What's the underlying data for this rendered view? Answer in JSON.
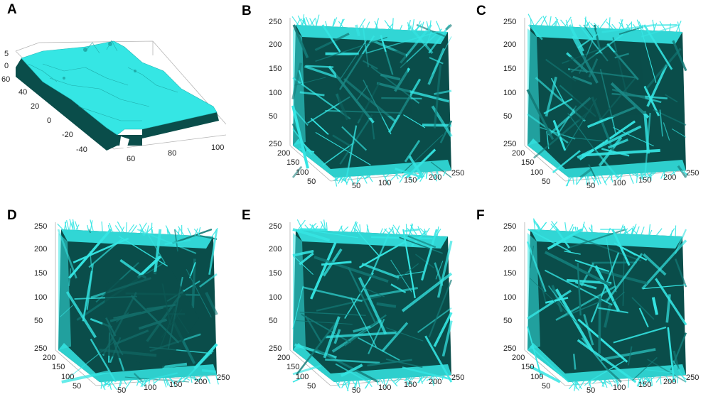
{
  "colors": {
    "cyan": "#35e6e4",
    "dark_teal": "#0a4d4a",
    "mid_teal": "#137a77",
    "axis_gray": "#9a9a9a"
  },
  "panels": {
    "A": {
      "label": "A",
      "z_ticks": [
        "5",
        "0"
      ],
      "y_ticks": [
        "60",
        "40",
        "20",
        "0",
        "-20",
        "-40"
      ],
      "x_ticks": [
        "60",
        "80",
        "100"
      ]
    },
    "cube": {
      "z_ticks": [
        "250",
        "200",
        "150",
        "100",
        "50"
      ],
      "y_ticks": [
        "250",
        "200",
        "150",
        "100",
        "50"
      ],
      "x_ticks": [
        "50",
        "100",
        "150",
        "200",
        "250"
      ]
    },
    "labels": [
      "B",
      "C",
      "D",
      "E",
      "F"
    ]
  }
}
